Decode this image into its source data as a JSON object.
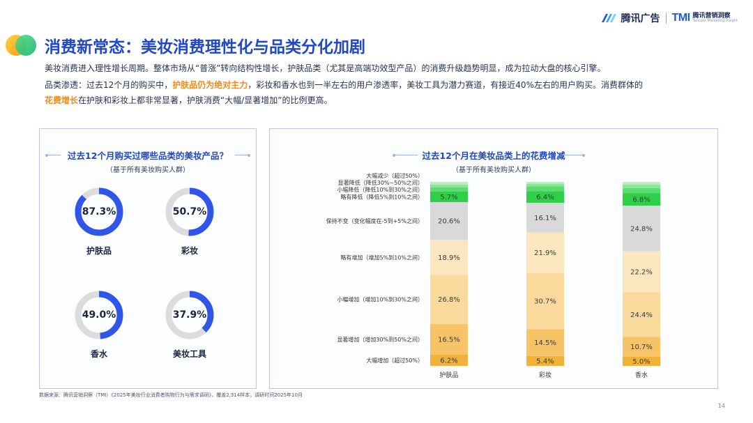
{
  "brand": {
    "logo_a": "腾讯广告",
    "logo_b_mark": "TMI",
    "logo_b_cn": "腾讯营销洞察",
    "logo_b_en": "Tencent Marketing Insight"
  },
  "page_title": "消费新常态：美妆消费理性化与品类分化加剧",
  "paragraphs": {
    "p1": "美妆消费进入理性增长周期。整体市场从“普涨”转向结构性增长，护肤品类（尤其是高端功效型产品）的消费升级趋势明显，成为拉动大盘的核心引擎。",
    "p2_a": "品类渗透：过去12个月的购买中，",
    "p2_hl": "护肤品仍为绝对主力",
    "p2_b": "，彩妆和香水也到一半左右的用户渗透率，美妆工具为潜力赛道，有接近40%左右的用户购买。消费群体的",
    "p3_hl": "花费增长",
    "p3_b": "在护肤和彩妆上都非常显著，护肤消费“大幅/显著增加”的比例更高。"
  },
  "left_panel": {
    "title": "过去12个月购买过哪些品类的美妆产品？",
    "subtitle": "（基于所有美妆购买人群）"
  },
  "right_panel": {
    "title": "过去12个月在美妆品类上的花费增减",
    "subtitle": "（基于所有美妆购买人群）"
  },
  "colors": {
    "accent": "#1f47c8",
    "donut_fill": "#2f56e8",
    "donut_track": "#dcdcdc",
    "highlight": "#f08a1c"
  },
  "chart_data": [
    {
      "type": "donut",
      "title": "过去12个月购买过哪些品类的美妆产品？",
      "categories": [
        "护肤品",
        "彩妆",
        "香水",
        "美妆工具"
      ],
      "values": [
        87.3,
        50.7,
        49.0,
        37.9
      ],
      "value_labels": [
        "87.3%",
        "50.7%",
        "49.0%",
        "37.9%"
      ],
      "unit": "%"
    },
    {
      "type": "bar",
      "stacked": true,
      "title": "过去12个月在美妆品类上的花费增减",
      "categories": [
        "护肤品",
        "彩妆",
        "香水"
      ],
      "ylim": [
        0,
        100
      ],
      "series": [
        {
          "name": "大幅增加（超过50%）",
          "color": "#f2b23a",
          "values": [
            6.2,
            5.4,
            5.0
          ],
          "labels": [
            "6.2%",
            "5.4%",
            "5.0%"
          ]
        },
        {
          "name": "显著增加（增加30%到50%之间）",
          "color": "#f6c467",
          "values": [
            16.5,
            14.5,
            10.7
          ],
          "labels": [
            "16.5%",
            "14.5%",
            "10.7%"
          ]
        },
        {
          "name": "小幅增加（增加10%到30%之间）",
          "color": "#f9d99c",
          "values": [
            26.8,
            30.7,
            24.4
          ],
          "labels": [
            "26.8%",
            "30.7%",
            "24.4%"
          ]
        },
        {
          "name": "略有增加（增加5%到10%之间）",
          "color": "#fbe6bf",
          "values": [
            18.9,
            21.9,
            22.2
          ],
          "labels": [
            "18.9%",
            "21.9%",
            "22.2%"
          ]
        },
        {
          "name": "保持不变（变化幅度在-5到+5%之间）",
          "color": "#d9d9d9",
          "values": [
            20.6,
            16.1,
            24.8
          ],
          "labels": [
            "20.6%",
            "16.1%",
            "24.8%"
          ]
        },
        {
          "name": "略有降低（降低5%到10%之间）",
          "color": "#2fcf4a",
          "values": [
            5.7,
            6.4,
            6.8
          ],
          "labels": [
            "5.7%",
            "6.4%",
            "6.8%"
          ]
        },
        {
          "name": "小幅降低（降低10%到30%之间）",
          "color": "#5cdb70",
          "values": [
            2.3,
            2.6,
            2.8
          ],
          "labels": [
            "",
            "",
            ""
          ]
        },
        {
          "name": "显著降低（降低30%~50%之间）",
          "color": "#8ae795",
          "values": [
            1.6,
            1.4,
            1.9
          ],
          "labels": [
            "",
            "",
            ""
          ]
        },
        {
          "name": "大幅减少（超过50%）",
          "color": "#b6f0bd",
          "values": [
            1.4,
            1.0,
            1.4
          ],
          "labels": [
            "",
            "",
            ""
          ]
        }
      ]
    }
  ],
  "source": "数据来源：腾讯营销洞察（TMI）《2025年美妆行业消费者购物行为与需求调研》，覆盖2,314样本，调研时间2025年10月",
  "page_number": "14"
}
